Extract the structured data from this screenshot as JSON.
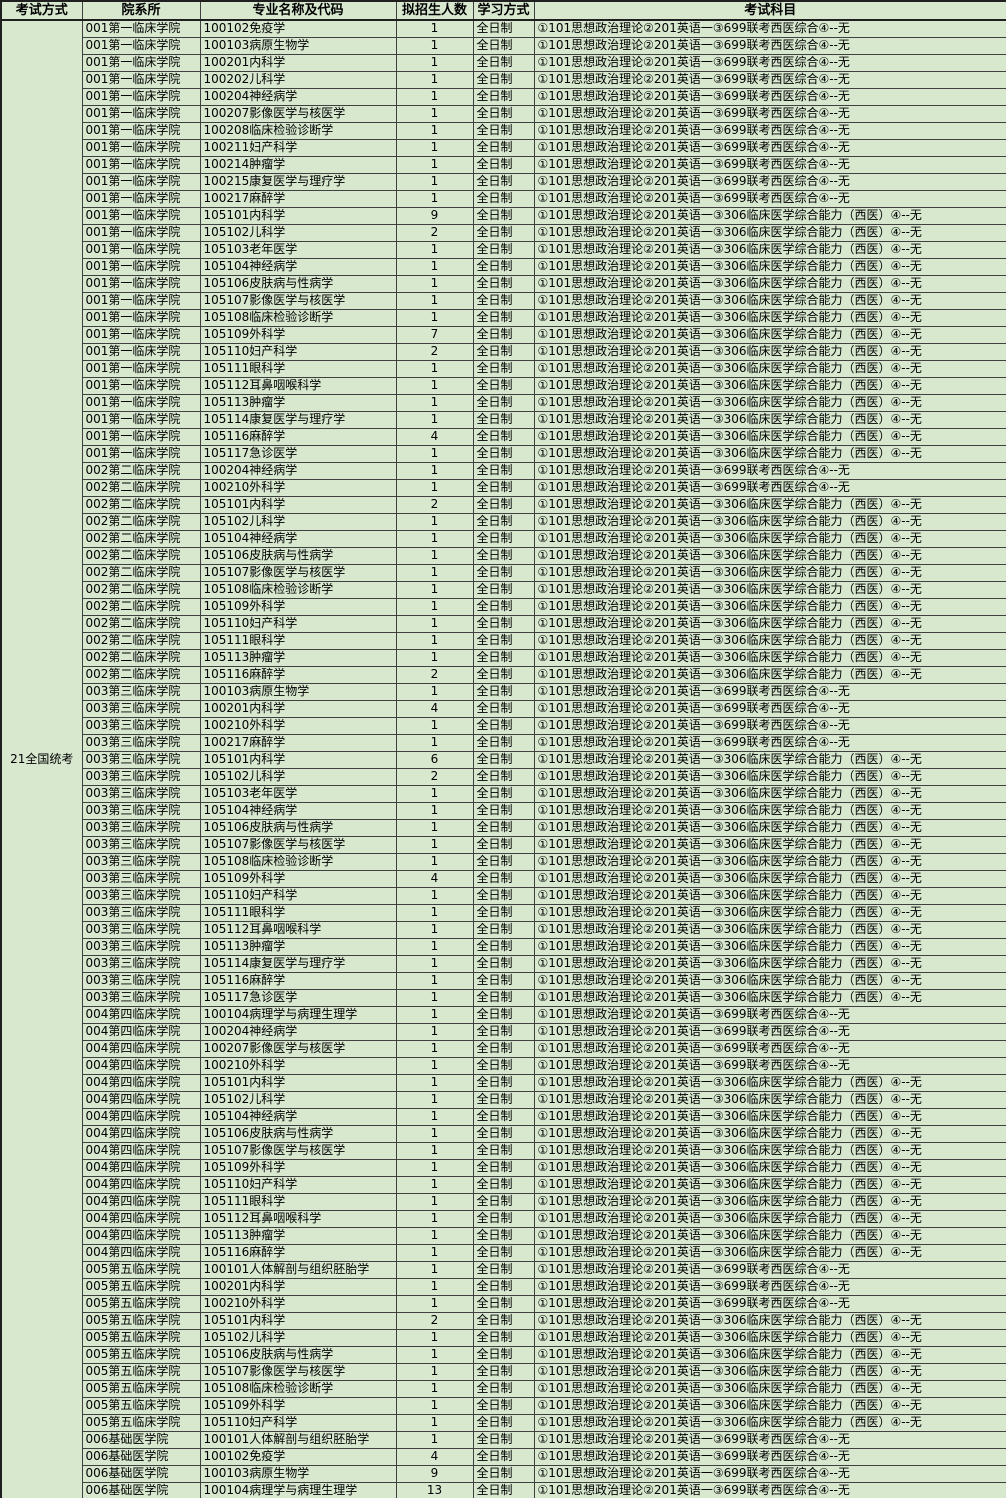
{
  "table": {
    "exam_method": "21全国统考",
    "headers": [
      "考试方式",
      "院系所",
      "专业名称及代码",
      "拟招生人数",
      "学习方式",
      "考试科目"
    ],
    "study_mode": "全日制",
    "subjects": {
      "A": "①101思想政治理论②201英语一③699联考西医综合④--无",
      "B": "①101思想政治理论②201英语一③306临床医学综合能力（西医）④--无"
    },
    "rows": [
      [
        "001第一临床学院",
        "100102免疫学",
        "1",
        "A"
      ],
      [
        "001第一临床学院",
        "100103病原生物学",
        "1",
        "A"
      ],
      [
        "001第一临床学院",
        "100201内科学",
        "1",
        "A"
      ],
      [
        "001第一临床学院",
        "100202儿科学",
        "1",
        "A"
      ],
      [
        "001第一临床学院",
        "100204神经病学",
        "1",
        "A"
      ],
      [
        "001第一临床学院",
        "100207影像医学与核医学",
        "1",
        "A"
      ],
      [
        "001第一临床学院",
        "100208临床检验诊断学",
        "1",
        "A"
      ],
      [
        "001第一临床学院",
        "100211妇产科学",
        "1",
        "A"
      ],
      [
        "001第一临床学院",
        "100214肿瘤学",
        "1",
        "A"
      ],
      [
        "001第一临床学院",
        "100215康复医学与理疗学",
        "1",
        "A"
      ],
      [
        "001第一临床学院",
        "100217麻醉学",
        "1",
        "A"
      ],
      [
        "001第一临床学院",
        "105101内科学",
        "9",
        "B"
      ],
      [
        "001第一临床学院",
        "105102儿科学",
        "2",
        "B"
      ],
      [
        "001第一临床学院",
        "105103老年医学",
        "1",
        "B"
      ],
      [
        "001第一临床学院",
        "105104神经病学",
        "1",
        "B"
      ],
      [
        "001第一临床学院",
        "105106皮肤病与性病学",
        "1",
        "B"
      ],
      [
        "001第一临床学院",
        "105107影像医学与核医学",
        "1",
        "B"
      ],
      [
        "001第一临床学院",
        "105108临床检验诊断学",
        "1",
        "B"
      ],
      [
        "001第一临床学院",
        "105109外科学",
        "7",
        "B"
      ],
      [
        "001第一临床学院",
        "105110妇产科学",
        "2",
        "B"
      ],
      [
        "001第一临床学院",
        "105111眼科学",
        "1",
        "B"
      ],
      [
        "001第一临床学院",
        "105112耳鼻咽喉科学",
        "1",
        "B"
      ],
      [
        "001第一临床学院",
        "105113肿瘤学",
        "1",
        "B"
      ],
      [
        "001第一临床学院",
        "105114康复医学与理疗学",
        "1",
        "B"
      ],
      [
        "001第一临床学院",
        "105116麻醉学",
        "4",
        "B"
      ],
      [
        "001第一临床学院",
        "105117急诊医学",
        "1",
        "B"
      ],
      [
        "002第二临床学院",
        "100204神经病学",
        "1",
        "A"
      ],
      [
        "002第二临床学院",
        "100210外科学",
        "1",
        "A"
      ],
      [
        "002第二临床学院",
        "105101内科学",
        "2",
        "B"
      ],
      [
        "002第二临床学院",
        "105102儿科学",
        "1",
        "B"
      ],
      [
        "002第二临床学院",
        "105104神经病学",
        "1",
        "B"
      ],
      [
        "002第二临床学院",
        "105106皮肤病与性病学",
        "1",
        "B"
      ],
      [
        "002第二临床学院",
        "105107影像医学与核医学",
        "1",
        "B"
      ],
      [
        "002第二临床学院",
        "105108临床检验诊断学",
        "1",
        "B"
      ],
      [
        "002第二临床学院",
        "105109外科学",
        "1",
        "B"
      ],
      [
        "002第二临床学院",
        "105110妇产科学",
        "1",
        "B"
      ],
      [
        "002第二临床学院",
        "105111眼科学",
        "1",
        "B"
      ],
      [
        "002第二临床学院",
        "105113肿瘤学",
        "1",
        "B"
      ],
      [
        "002第二临床学院",
        "105116麻醉学",
        "2",
        "B"
      ],
      [
        "003第三临床学院",
        "100103病原生物学",
        "1",
        "A"
      ],
      [
        "003第三临床学院",
        "100201内科学",
        "4",
        "A"
      ],
      [
        "003第三临床学院",
        "100210外科学",
        "1",
        "A"
      ],
      [
        "003第三临床学院",
        "100217麻醉学",
        "1",
        "A"
      ],
      [
        "003第三临床学院",
        "105101内科学",
        "6",
        "B"
      ],
      [
        "003第三临床学院",
        "105102儿科学",
        "2",
        "B"
      ],
      [
        "003第三临床学院",
        "105103老年医学",
        "1",
        "B"
      ],
      [
        "003第三临床学院",
        "105104神经病学",
        "1",
        "B"
      ],
      [
        "003第三临床学院",
        "105106皮肤病与性病学",
        "1",
        "B"
      ],
      [
        "003第三临床学院",
        "105107影像医学与核医学",
        "1",
        "B"
      ],
      [
        "003第三临床学院",
        "105108临床检验诊断学",
        "1",
        "B"
      ],
      [
        "003第三临床学院",
        "105109外科学",
        "4",
        "B"
      ],
      [
        "003第三临床学院",
        "105110妇产科学",
        "1",
        "B"
      ],
      [
        "003第三临床学院",
        "105111眼科学",
        "1",
        "B"
      ],
      [
        "003第三临床学院",
        "105112耳鼻咽喉科学",
        "1",
        "B"
      ],
      [
        "003第三临床学院",
        "105113肿瘤学",
        "1",
        "B"
      ],
      [
        "003第三临床学院",
        "105114康复医学与理疗学",
        "1",
        "B"
      ],
      [
        "003第三临床学院",
        "105116麻醉学",
        "1",
        "B"
      ],
      [
        "003第三临床学院",
        "105117急诊医学",
        "1",
        "B"
      ],
      [
        "004第四临床学院",
        "100104病理学与病理生理学",
        "1",
        "A"
      ],
      [
        "004第四临床学院",
        "100204神经病学",
        "1",
        "A"
      ],
      [
        "004第四临床学院",
        "100207影像医学与核医学",
        "1",
        "A"
      ],
      [
        "004第四临床学院",
        "100210外科学",
        "1",
        "A"
      ],
      [
        "004第四临床学院",
        "105101内科学",
        "1",
        "B"
      ],
      [
        "004第四临床学院",
        "105102儿科学",
        "1",
        "B"
      ],
      [
        "004第四临床学院",
        "105104神经病学",
        "1",
        "B"
      ],
      [
        "004第四临床学院",
        "105106皮肤病与性病学",
        "1",
        "B"
      ],
      [
        "004第四临床学院",
        "105107影像医学与核医学",
        "1",
        "B"
      ],
      [
        "004第四临床学院",
        "105109外科学",
        "1",
        "B"
      ],
      [
        "004第四临床学院",
        "105110妇产科学",
        "1",
        "B"
      ],
      [
        "004第四临床学院",
        "105111眼科学",
        "1",
        "B"
      ],
      [
        "004第四临床学院",
        "105112耳鼻咽喉科学",
        "1",
        "B"
      ],
      [
        "004第四临床学院",
        "105113肿瘤学",
        "1",
        "B"
      ],
      [
        "004第四临床学院",
        "105116麻醉学",
        "1",
        "B"
      ],
      [
        "005第五临床学院",
        "100101人体解剖与组织胚胎学",
        "1",
        "A"
      ],
      [
        "005第五临床学院",
        "100201内科学",
        "1",
        "A"
      ],
      [
        "005第五临床学院",
        "100210外科学",
        "1",
        "A"
      ],
      [
        "005第五临床学院",
        "105101内科学",
        "2",
        "B"
      ],
      [
        "005第五临床学院",
        "105102儿科学",
        "1",
        "B"
      ],
      [
        "005第五临床学院",
        "105106皮肤病与性病学",
        "1",
        "B"
      ],
      [
        "005第五临床学院",
        "105107影像医学与核医学",
        "1",
        "B"
      ],
      [
        "005第五临床学院",
        "105108临床检验诊断学",
        "1",
        "B"
      ],
      [
        "005第五临床学院",
        "105109外科学",
        "1",
        "B"
      ],
      [
        "005第五临床学院",
        "105110妇产科学",
        "1",
        "B"
      ],
      [
        "006基础医学院",
        "100101人体解剖与组织胚胎学",
        "1",
        "A"
      ],
      [
        "006基础医学院",
        "100102免疫学",
        "4",
        "A"
      ],
      [
        "006基础医学院",
        "100103病原生物学",
        "9",
        "A"
      ],
      [
        "006基础医学院",
        "100104病理学与病理生理学",
        "13",
        "A"
      ]
    ]
  },
  "colors": {
    "cell_bg": "#d7e8cf",
    "grid_line": "#404040",
    "frame_line": "#1f1f1f",
    "text": "#000000"
  }
}
